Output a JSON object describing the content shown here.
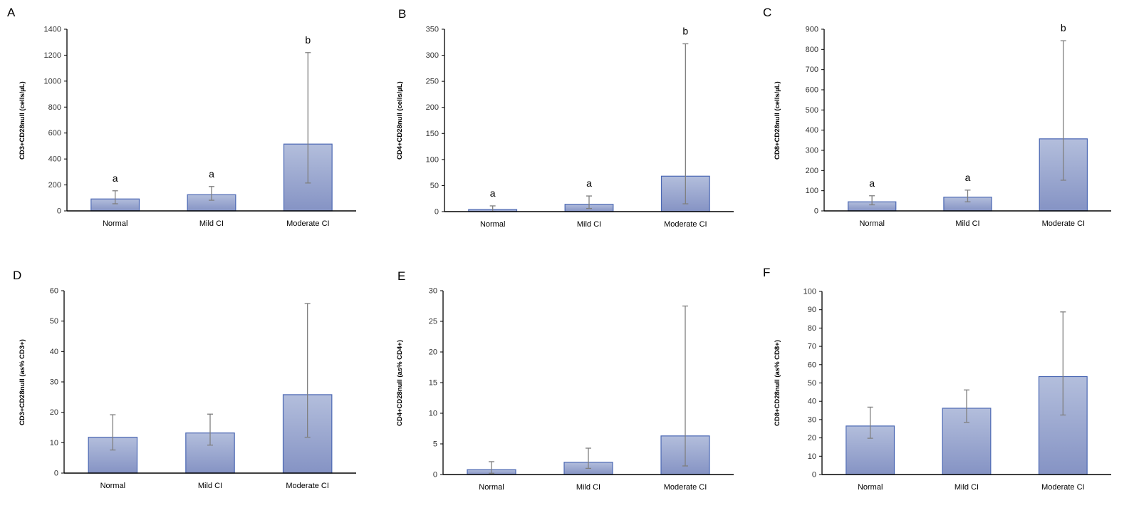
{
  "colors": {
    "bar_top": "#b3bedc",
    "bar_bottom": "#8593c4",
    "bar_border": "#4a67b3",
    "axis": "#000000",
    "error_bar": "#7f7f7f",
    "text": "#000000"
  },
  "chart_data": [
    {
      "id": "A",
      "panel_label": "A",
      "type": "bar",
      "categories": [
        "Normal",
        "Mild CI",
        "Moderate CI"
      ],
      "values": [
        92,
        125,
        515
      ],
      "err_low": [
        55,
        82,
        215
      ],
      "err_high": [
        155,
        188,
        1220
      ],
      "annotations": [
        "a",
        "a",
        "b"
      ],
      "ylabel": "CD3+CD28null (cells/µL)",
      "ylim": [
        0,
        1400
      ],
      "yticks": [
        0,
        200,
        400,
        600,
        800,
        1000,
        1200,
        1400
      ]
    },
    {
      "id": "B",
      "panel_label": "B",
      "type": "bar",
      "categories": [
        "Normal",
        "Mild CI",
        "Moderate CI"
      ],
      "values": [
        4,
        14,
        68
      ],
      "err_low": [
        0,
        6,
        15
      ],
      "err_high": [
        11,
        30,
        322
      ],
      "annotations": [
        "a",
        "a",
        "b"
      ],
      "ylabel": "CD4+CD28null (cells/µL)",
      "ylim": [
        0,
        350
      ],
      "yticks": [
        0,
        50,
        100,
        150,
        200,
        250,
        300,
        350
      ]
    },
    {
      "id": "C",
      "panel_label": "C",
      "type": "bar",
      "categories": [
        "Normal",
        "Mild CI",
        "Moderate CI"
      ],
      "values": [
        45,
        68,
        357
      ],
      "err_low": [
        30,
        45,
        152
      ],
      "err_high": [
        75,
        103,
        843
      ],
      "annotations": [
        "a",
        "a",
        "b"
      ],
      "ylabel": "CD8+CD28null (cells/µL)",
      "ylim": [
        0,
        900
      ],
      "yticks": [
        0,
        100,
        200,
        300,
        400,
        500,
        600,
        700,
        800,
        900
      ]
    },
    {
      "id": "D",
      "panel_label": "D",
      "type": "bar",
      "categories": [
        "Normal",
        "Mild CI",
        "Moderate CI"
      ],
      "values": [
        11.8,
        13.2,
        25.8
      ],
      "err_low": [
        7.6,
        9.2,
        11.8
      ],
      "err_high": [
        19.2,
        19.4,
        55.8
      ],
      "annotations": [
        "",
        "",
        ""
      ],
      "ylabel": "CD3+CD28null (as% CD3+)",
      "ylim": [
        0,
        60
      ],
      "yticks": [
        0,
        10,
        20,
        30,
        40,
        50,
        60
      ]
    },
    {
      "id": "E",
      "panel_label": "E",
      "type": "bar",
      "categories": [
        "Normal",
        "Mild CI",
        "Moderate CI"
      ],
      "values": [
        0.8,
        2.0,
        6.3
      ],
      "err_low": [
        0.2,
        1.0,
        1.4
      ],
      "err_high": [
        2.1,
        4.3,
        27.5
      ],
      "annotations": [
        "",
        "",
        ""
      ],
      "ylabel": "CD4+CD28null (as% CD4+)",
      "ylim": [
        0,
        30
      ],
      "yticks": [
        0,
        5,
        10,
        15,
        20,
        25,
        30
      ]
    },
    {
      "id": "F",
      "panel_label": "F",
      "type": "bar",
      "categories": [
        "Normal",
        "Mild CI",
        "Moderate CI"
      ],
      "values": [
        26.5,
        36.2,
        53.5
      ],
      "err_low": [
        19.8,
        28.5,
        32.5
      ],
      "err_high": [
        36.8,
        46.2,
        88.8
      ],
      "annotations": [
        "",
        "",
        ""
      ],
      "ylabel": "CD8+CD28null (as% CD8+)",
      "ylim": [
        0,
        100
      ],
      "yticks": [
        0,
        10,
        20,
        30,
        40,
        50,
        60,
        70,
        80,
        90,
        100
      ]
    }
  ]
}
